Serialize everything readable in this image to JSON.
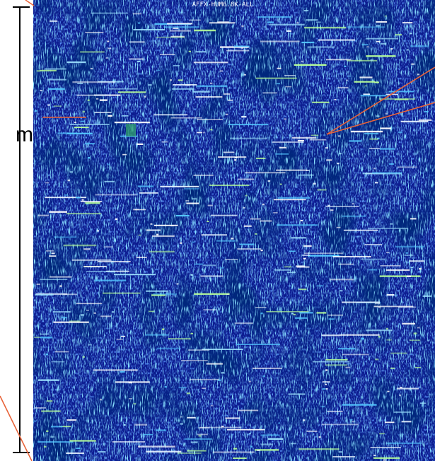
{
  "image": {
    "label": "AFFX-HUM6.8K-ALL"
  },
  "side_label": "m"
}
